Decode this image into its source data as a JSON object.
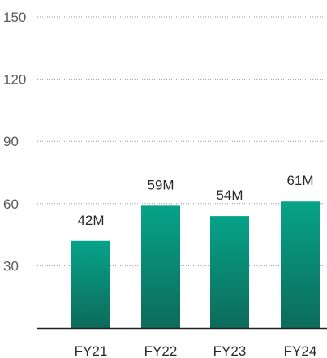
{
  "chart_data": {
    "type": "bar",
    "categories": [
      "FY21",
      "FY22",
      "FY23",
      "FY24"
    ],
    "values": [
      42,
      59,
      54,
      61
    ],
    "data_labels": [
      "42M",
      "59M",
      "54M",
      "61M"
    ],
    "title": "",
    "xlabel": "",
    "ylabel": "",
    "ylim": [
      0,
      150
    ],
    "yticks": [
      30,
      60,
      90,
      120,
      150
    ],
    "grid": "horizontal dotted",
    "legend": "none",
    "colors": {
      "bar_top": "#06a389",
      "bar_bottom": "#0d6b5a",
      "grid": "#9a9a9a",
      "axis": "#222222"
    }
  }
}
